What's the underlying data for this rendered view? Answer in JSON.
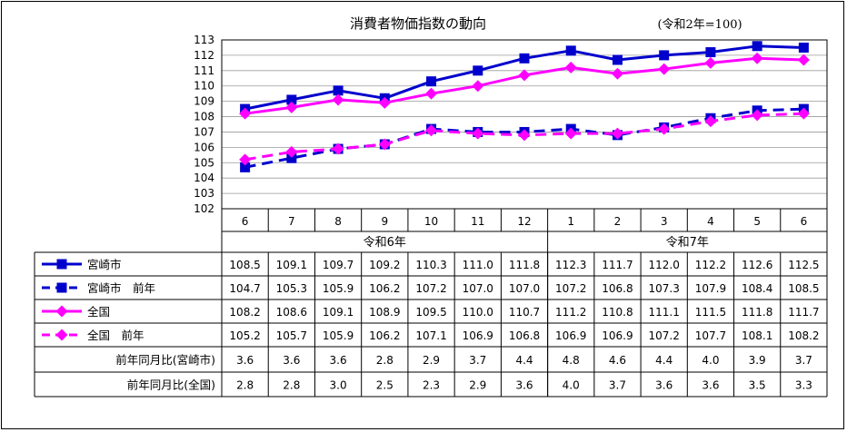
{
  "chart_data": {
    "type": "line",
    "title": "消費者物価指数の動向",
    "note": "(令和2年=100)",
    "ylim": [
      102,
      113
    ],
    "yticks": [
      "102",
      "103",
      "104",
      "105",
      "106",
      "107",
      "108",
      "109",
      "110",
      "111",
      "112",
      "113"
    ],
    "categories": [
      "6",
      "7",
      "8",
      "9",
      "10",
      "11",
      "12",
      "1",
      "2",
      "3",
      "4",
      "5",
      "6"
    ],
    "year_groups": [
      {
        "label": "令和6年",
        "span": 7
      },
      {
        "label": "令和7年",
        "span": 6
      }
    ],
    "grid": true,
    "series": [
      {
        "name": "宮崎市",
        "color": "#0000CC",
        "dash": false,
        "marker": "square",
        "values": [
          108.5,
          109.1,
          109.7,
          109.2,
          110.3,
          111.0,
          111.8,
          112.3,
          111.7,
          112.0,
          112.2,
          112.6,
          112.5
        ]
      },
      {
        "name": "宮崎市　前年",
        "color": "#0000CC",
        "dash": true,
        "marker": "square",
        "values": [
          104.7,
          105.3,
          105.9,
          106.2,
          107.2,
          107.0,
          107.0,
          107.2,
          106.8,
          107.3,
          107.9,
          108.4,
          108.5
        ]
      },
      {
        "name": "全国",
        "color": "#FF00FF",
        "dash": false,
        "marker": "diamond",
        "values": [
          108.2,
          108.6,
          109.1,
          108.9,
          109.5,
          110.0,
          110.7,
          111.2,
          110.8,
          111.1,
          111.5,
          111.8,
          111.7
        ]
      },
      {
        "name": "全国　前年",
        "color": "#FF00FF",
        "dash": true,
        "marker": "diamond",
        "values": [
          105.2,
          105.7,
          105.9,
          106.2,
          107.1,
          106.9,
          106.8,
          106.9,
          106.9,
          107.2,
          107.7,
          108.1,
          108.2
        ]
      }
    ],
    "table_rows": [
      {
        "label": "前年同月比(宮崎市)",
        "values": [
          "3.6",
          "3.6",
          "3.6",
          "2.8",
          "2.9",
          "3.7",
          "4.4",
          "4.8",
          "4.6",
          "4.4",
          "4.0",
          "3.9",
          "3.7"
        ]
      },
      {
        "label": "前年同月比(全国)",
        "values": [
          "2.8",
          "2.8",
          "3.0",
          "2.5",
          "2.3",
          "2.9",
          "3.6",
          "4.0",
          "3.7",
          "3.6",
          "3.6",
          "3.5",
          "3.3"
        ]
      }
    ]
  }
}
